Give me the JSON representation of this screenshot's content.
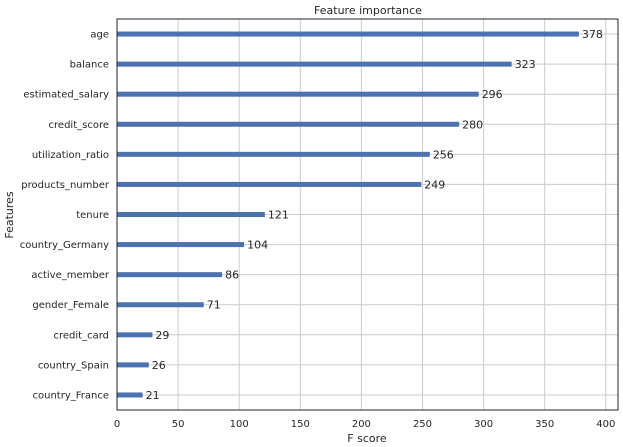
{
  "chart_data": {
    "type": "bar",
    "orientation": "horizontal",
    "title": "Feature importance",
    "xlabel": "F score",
    "ylabel": "Features",
    "xlim": [
      0,
      410
    ],
    "xticks": [
      0,
      50,
      100,
      150,
      200,
      250,
      300,
      350,
      400
    ],
    "grid": true,
    "bar_color": "#4c72b0",
    "categories": [
      "age",
      "balance",
      "estimated_salary",
      "credit_score",
      "utilization_ratio",
      "products_number",
      "tenure",
      "country_Germany",
      "active_member",
      "gender_Female",
      "credit_card",
      "country_Spain",
      "country_France"
    ],
    "values": [
      378,
      323,
      296,
      280,
      256,
      249,
      121,
      104,
      86,
      71,
      29,
      26,
      21
    ]
  }
}
